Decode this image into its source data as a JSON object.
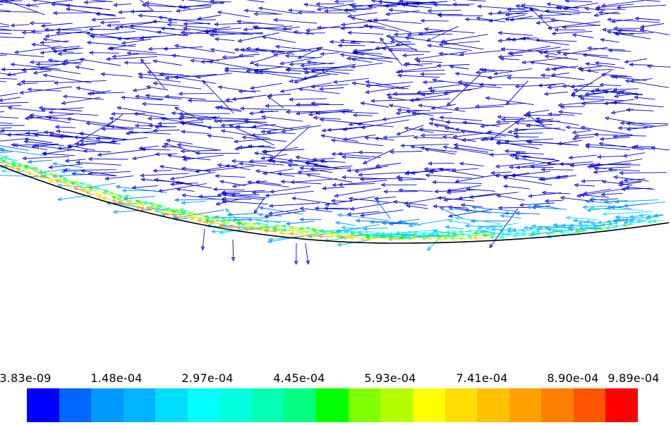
{
  "legend": {
    "tick_labels": [
      "3.83e-09",
      "1.48e-04",
      "2.97e-04",
      "4.45e-04",
      "5.93e-04",
      "7.41e-04",
      "8.90e-04",
      "9.89e-04"
    ],
    "range": [
      3.83e-09,
      0.000989
    ],
    "colors": [
      "#0000ff",
      "#0066ff",
      "#0099ff",
      "#00b3ff",
      "#00ddff",
      "#00ffff",
      "#00ffdd",
      "#00ffb0",
      "#00ff80",
      "#00ff00",
      "#80ff00",
      "#b3ff00",
      "#ffff00",
      "#ffdd00",
      "#ffc000",
      "#ffa000",
      "#ff8000",
      "#ff5500",
      "#ff0000"
    ]
  },
  "field": {
    "arrow_color": "#0000cc",
    "surface_color": "#000000"
  }
}
